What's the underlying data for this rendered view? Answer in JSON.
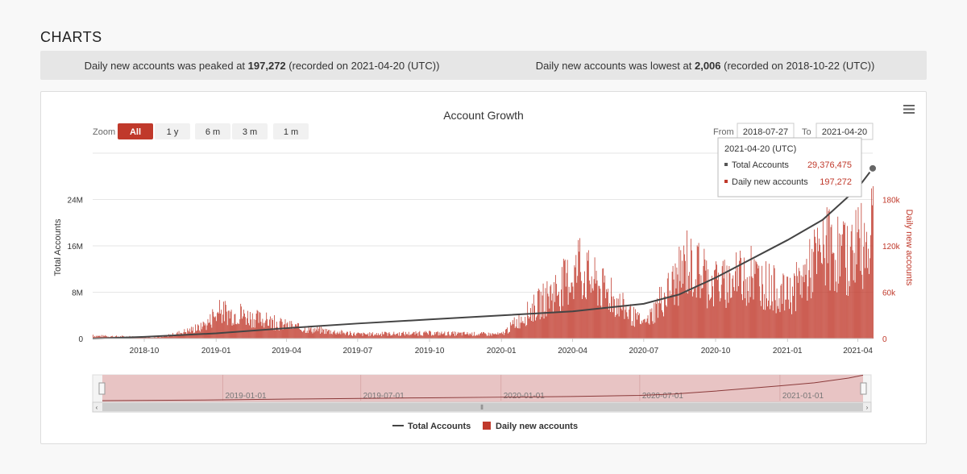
{
  "page": {
    "title": "CHARTS"
  },
  "stats": {
    "peak": {
      "prefix": "Daily new accounts was peaked at ",
      "value": "197,272",
      "suffix": " (recorded on 2021-04-20 (UTC))"
    },
    "lowest": {
      "prefix": "Daily new accounts was lowest at ",
      "value": "2,006",
      "suffix": " (recorded on 2018-10-22 (UTC))"
    }
  },
  "zoom": {
    "label": "Zoom",
    "buttons": [
      {
        "label": "All",
        "active": true
      },
      {
        "label": "1 y",
        "active": false
      },
      {
        "label": "6 m",
        "active": false
      },
      {
        "label": "3 m",
        "active": false
      },
      {
        "label": "1 m",
        "active": false
      }
    ]
  },
  "range": {
    "from_label": "From",
    "from_value": "2018-07-27",
    "to_label": "To",
    "to_value": "2021-04-20"
  },
  "tooltip": {
    "date": "2021-04-20 (UTC)",
    "rows": [
      {
        "label": "Total Accounts",
        "value": "29,376,475",
        "color": "#555555"
      },
      {
        "label": "Daily new accounts",
        "value": "197,272",
        "color": "#c0392b"
      }
    ]
  },
  "navigator": {
    "labels": [
      "2019-01-01",
      "2019-07-01",
      "2020-01-01",
      "2020-07-01",
      "2021-01-01"
    ]
  },
  "chart_data": {
    "type": "line",
    "title": "Account Growth",
    "x_tick_labels": [
      "2018-10",
      "2019-01",
      "2019-04",
      "2019-07",
      "2019-10",
      "2020-01",
      "2020-04",
      "2020-07",
      "2020-10",
      "2021-01",
      "2021-04"
    ],
    "x_range": [
      "2018-07-27",
      "2021-04-20"
    ],
    "y_left": {
      "label": "Total Accounts",
      "ticks": [
        "0",
        "8M",
        "16M",
        "24M"
      ],
      "range": [
        0,
        32000000
      ]
    },
    "y_right": {
      "label": "Daily new accounts",
      "ticks": [
        "0",
        "60k",
        "120k",
        "180k"
      ],
      "range": [
        0,
        240000
      ]
    },
    "legend_position": "bottom-center",
    "series": [
      {
        "name": "Total Accounts",
        "type": "line",
        "axis": "left",
        "color": "#444444",
        "points": [
          [
            "2018-07-27",
            0
          ],
          [
            "2018-10-01",
            300000
          ],
          [
            "2019-01-01",
            900000
          ],
          [
            "2019-04-01",
            1800000
          ],
          [
            "2019-07-01",
            2600000
          ],
          [
            "2019-10-01",
            3300000
          ],
          [
            "2020-01-01",
            4000000
          ],
          [
            "2020-04-01",
            4700000
          ],
          [
            "2020-07-01",
            6000000
          ],
          [
            "2020-08-15",
            7600000
          ],
          [
            "2020-10-01",
            10500000
          ],
          [
            "2021-01-01",
            17000000
          ],
          [
            "2021-02-15",
            20500000
          ],
          [
            "2021-04-01",
            26000000
          ],
          [
            "2021-04-20",
            29376475
          ]
        ]
      },
      {
        "name": "Daily new accounts",
        "type": "bar",
        "axis": "right",
        "color": "#c0392b",
        "points": [
          [
            "2018-07-27",
            5000
          ],
          [
            "2018-10-22",
            2006
          ],
          [
            "2018-12-15",
            22000
          ],
          [
            "2019-01-05",
            50000
          ],
          [
            "2019-02-01",
            45000
          ],
          [
            "2019-04-15",
            20000
          ],
          [
            "2019-07-01",
            8000
          ],
          [
            "2019-10-01",
            10000
          ],
          [
            "2020-01-01",
            8000
          ],
          [
            "2020-04-10",
            130000
          ],
          [
            "2020-07-01",
            25000
          ],
          [
            "2020-08-25",
            140000
          ],
          [
            "2020-10-01",
            100000
          ],
          [
            "2020-11-15",
            120000
          ],
          [
            "2021-01-01",
            80000
          ],
          [
            "2021-02-20",
            170000
          ],
          [
            "2021-03-15",
            150000
          ],
          [
            "2021-04-01",
            170000
          ],
          [
            "2021-04-20",
            197272
          ]
        ]
      }
    ]
  }
}
